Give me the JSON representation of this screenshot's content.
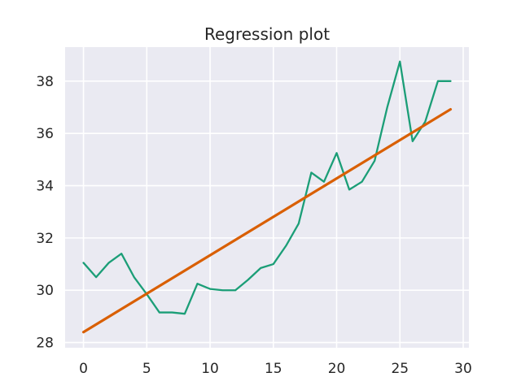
{
  "chart_data": {
    "type": "line",
    "title": "Regression plot",
    "xlabel": "",
    "ylabel": "",
    "xlim": [
      -1.45,
      30.45
    ],
    "ylim": [
      27.8,
      39.3
    ],
    "xticks": [
      0,
      5,
      10,
      15,
      20,
      25,
      30
    ],
    "yticks": [
      28,
      30,
      32,
      34,
      36,
      38
    ],
    "grid": true,
    "legend": "none",
    "series": [
      {
        "kind": "line",
        "color": "#1b9e77",
        "x": [
          0,
          1,
          2,
          3,
          4,
          5,
          6,
          7,
          8,
          9,
          10,
          11,
          12,
          13,
          14,
          15,
          16,
          17,
          18,
          19,
          20,
          21,
          22,
          23,
          24,
          25,
          26,
          27,
          28,
          29
        ],
        "y": [
          31.05,
          30.5,
          31.05,
          31.4,
          30.5,
          29.85,
          29.15,
          29.15,
          29.1,
          30.25,
          30.05,
          30.0,
          30.0,
          30.4,
          30.85,
          31.0,
          31.7,
          32.55,
          34.5,
          34.15,
          35.25,
          33.85,
          34.15,
          34.95,
          37.0,
          38.75,
          35.7,
          36.45,
          38.0,
          38.0
        ]
      },
      {
        "kind": "regression",
        "color": "#d95f02",
        "x": [
          0,
          29
        ],
        "y": [
          28.4,
          36.92
        ]
      }
    ]
  }
}
